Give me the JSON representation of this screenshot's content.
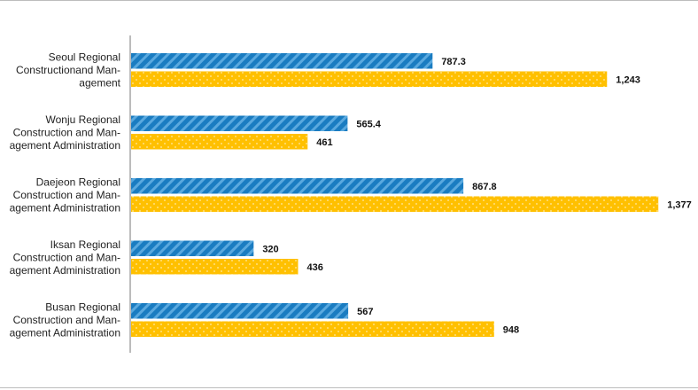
{
  "chart_data": {
    "type": "bar",
    "orientation": "horizontal",
    "categories": [
      [
        "Seoul Regional",
        "Constructionand Man-",
        "agement"
      ],
      [
        "Wonju Regional",
        "Construction and Man-",
        "agement Administration"
      ],
      [
        "Daejeon Regional",
        "Construction and Man-",
        "agement Administration"
      ],
      [
        "Iksan Regional",
        "Construction and Man-",
        "agement Administration"
      ],
      [
        "Busan Regional",
        "Construction and Man-",
        "agement Administration"
      ]
    ],
    "series": [
      {
        "color": "#1a7cc1",
        "pattern": "diagonal-stripes",
        "values": [
          787.3,
          565.4,
          867.8,
          320,
          567
        ],
        "labels": [
          "787.3",
          "565.4",
          "867.8",
          "320",
          "567"
        ]
      },
      {
        "color": "#ffc000",
        "pattern": "dots",
        "values": [
          1243,
          461,
          1377,
          436,
          948
        ],
        "labels": [
          "1,243",
          "461",
          "1,377",
          "436",
          "948"
        ]
      }
    ],
    "xlim": [
      0,
      1550
    ],
    "grid": false,
    "legend": "none",
    "axis_color": "#a6a6a6"
  }
}
